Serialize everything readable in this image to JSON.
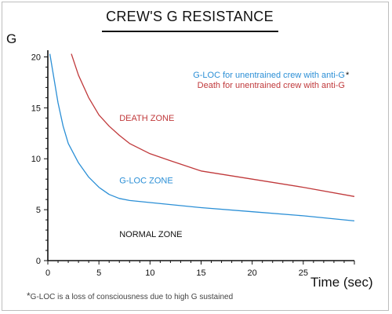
{
  "chart_data": {
    "type": "line",
    "title": "CREW'S G RESISTANCE",
    "ylabel": "G",
    "xlabel": "Time (sec)",
    "xlim": [
      0,
      30
    ],
    "ylim": [
      0,
      20.5
    ],
    "x_ticks": [
      0,
      5,
      10,
      15,
      20,
      25
    ],
    "y_ticks": [
      0,
      5,
      10,
      15,
      20
    ],
    "grid": false,
    "series": [
      {
        "name": "G-LOC for unentrained crew with anti-G",
        "color": "#2b8fd6",
        "points": [
          [
            0.2,
            20.3
          ],
          [
            0.5,
            18.5
          ],
          [
            1,
            15.5
          ],
          [
            1.5,
            13.2
          ],
          [
            2,
            11.5
          ],
          [
            3,
            9.6
          ],
          [
            4,
            8.2
          ],
          [
            5,
            7.2
          ],
          [
            6,
            6.5
          ],
          [
            7,
            6.1
          ],
          [
            8,
            5.9
          ],
          [
            10,
            5.7
          ],
          [
            15,
            5.2
          ],
          [
            20,
            4.8
          ],
          [
            25,
            4.4
          ],
          [
            30,
            3.9
          ]
        ]
      },
      {
        "name": "Death for unentrained crew with anti-G",
        "color": "#c0393b",
        "points": [
          [
            2.3,
            20.3
          ],
          [
            3,
            18.2
          ],
          [
            4,
            16.0
          ],
          [
            5,
            14.3
          ],
          [
            6,
            13.2
          ],
          [
            7,
            12.3
          ],
          [
            8,
            11.5
          ],
          [
            10,
            10.5
          ],
          [
            12,
            9.8
          ],
          [
            15,
            8.8
          ],
          [
            20,
            8.0
          ],
          [
            25,
            7.2
          ],
          [
            30,
            6.3
          ]
        ]
      }
    ],
    "legend": {
      "position": "top-right",
      "entries": [
        {
          "text": "G-LOC for unentrained crew with anti-G",
          "suffix": "*",
          "color": "#2b8fd6"
        },
        {
          "text": "Death for unentrained crew with anti-G",
          "suffix": "",
          "color": "#c0393b"
        }
      ]
    },
    "annotations": [
      {
        "text": "DEATH ZONE",
        "x": 7,
        "y": 13.7,
        "color": "#c0393b"
      },
      {
        "text": "G-LOC ZONE",
        "x": 7,
        "y": 7.6,
        "color": "#2b8fd6"
      },
      {
        "text": "NORMAL ZONE",
        "x": 7,
        "y": 2.3,
        "color": "#111111"
      }
    ]
  },
  "footnote": {
    "star": "*",
    "text": "G-LOC is a loss of consciousness due to high G sustained"
  }
}
